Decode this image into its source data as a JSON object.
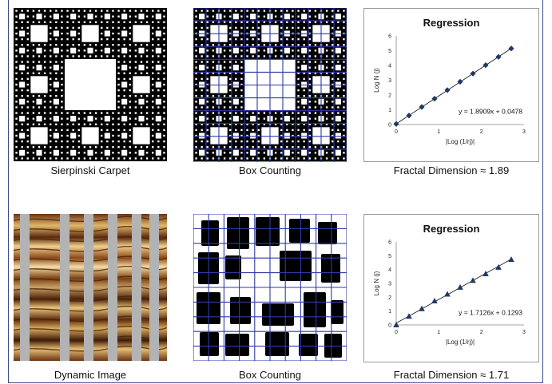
{
  "row1": {
    "captions": {
      "left": "Sierpinski Carpet",
      "middle": "Box Counting",
      "right": "Fractal Dimension ≈ 1.89"
    }
  },
  "row2": {
    "captions": {
      "left": "Dynamic Image",
      "middle": "Box Counting",
      "right": "Fractal Dimension ≈ 1.71"
    }
  },
  "chart_data": [
    {
      "type": "scatter",
      "marker": "diamond",
      "color": "#1f3864",
      "title": "Regression",
      "xlabel": "|Log (1/rj)|",
      "ylabel": "Log N (j)",
      "xlim": [
        0,
        3
      ],
      "ylim": [
        0,
        6
      ],
      "xticks": [
        "0",
        "1",
        "2",
        "3"
      ],
      "yticks": [
        "0",
        "1",
        "2",
        "3",
        "4",
        "5",
        "6"
      ],
      "x": [
        0,
        0.3,
        0.6,
        0.9,
        1.2,
        1.5,
        1.8,
        2.1,
        2.4,
        2.7
      ],
      "y": [
        0.04,
        0.61,
        1.19,
        1.75,
        2.33,
        2.9,
        3.45,
        4.02,
        4.58,
        5.15
      ],
      "trendline": {
        "slope": 1.8909,
        "intercept": 0.0478
      },
      "equation": "y = 1.8909x + 0.0478"
    },
    {
      "type": "scatter",
      "marker": "triangle",
      "color": "#1f3864",
      "title": "Regression",
      "xlabel": "|Log (1/rj)|",
      "ylabel": "Log N (j)",
      "xlim": [
        0,
        3
      ],
      "ylim": [
        0,
        6
      ],
      "xticks": [
        "0",
        "1",
        "2",
        "3"
      ],
      "yticks": [
        "0",
        "1",
        "2",
        "3",
        "4",
        "5",
        "6"
      ],
      "x": [
        0,
        0.3,
        0.6,
        0.9,
        1.2,
        1.5,
        1.8,
        2.1,
        2.4,
        2.7
      ],
      "y": [
        0.0,
        0.62,
        1.17,
        1.73,
        2.22,
        2.72,
        3.21,
        3.69,
        4.16,
        4.72
      ],
      "trendline": {
        "slope": 1.7126,
        "intercept": 0.1293
      },
      "equation": "y = 1.7126x + 0.1293"
    }
  ]
}
